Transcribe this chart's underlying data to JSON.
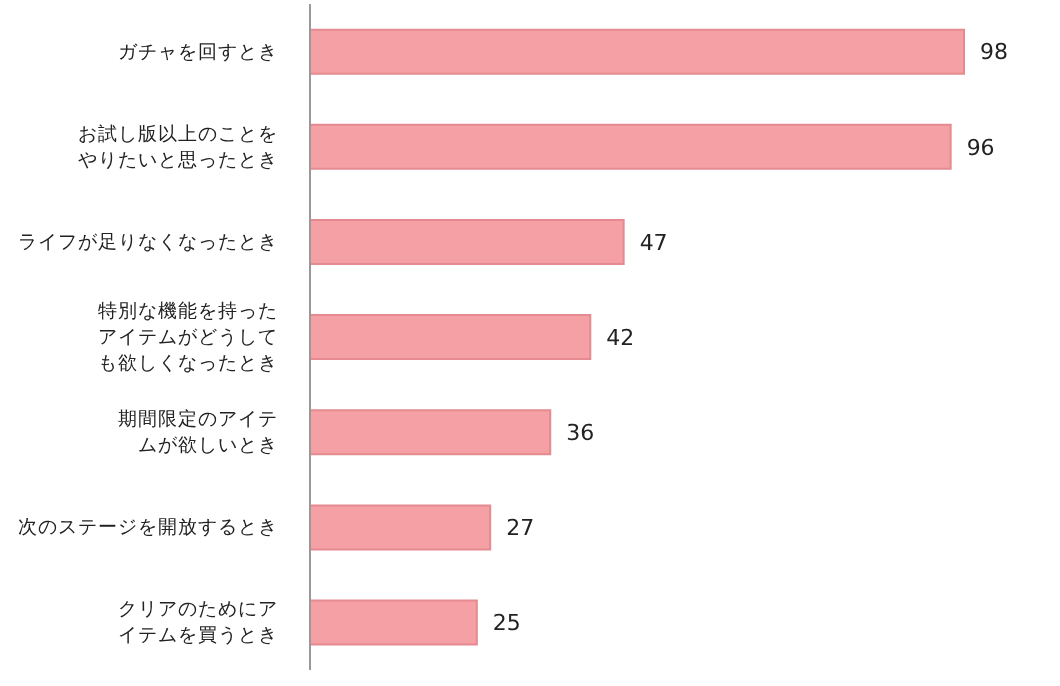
{
  "chart_data": {
    "type": "bar",
    "orientation": "horizontal",
    "categories": [
      "ガチャを回すとき",
      "お試し版以上のことをやりたいと思ったとき",
      "ライフが足りなくなったとき",
      "特別な機能を持ったアイテムがどうしても欲しくなったとき",
      "期間限定のアイテムが欲しいとき",
      "次のステージを開放するとき",
      "クリアのためにアイテムを買うとき"
    ],
    "values": [
      98,
      96,
      47,
      42,
      36,
      27,
      25
    ],
    "color": "#f5a0a5",
    "data_labels": true,
    "grid": false,
    "legend": false
  }
}
